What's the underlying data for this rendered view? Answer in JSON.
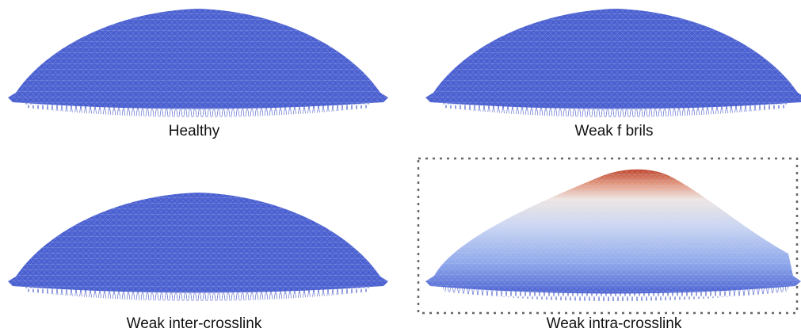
{
  "panels": [
    {
      "label": "Healthy"
    },
    {
      "label": "Weak f brils"
    },
    {
      "label": "Weak inter-crosslink"
    },
    {
      "label": "Weak intra-crosslink"
    }
  ]
}
